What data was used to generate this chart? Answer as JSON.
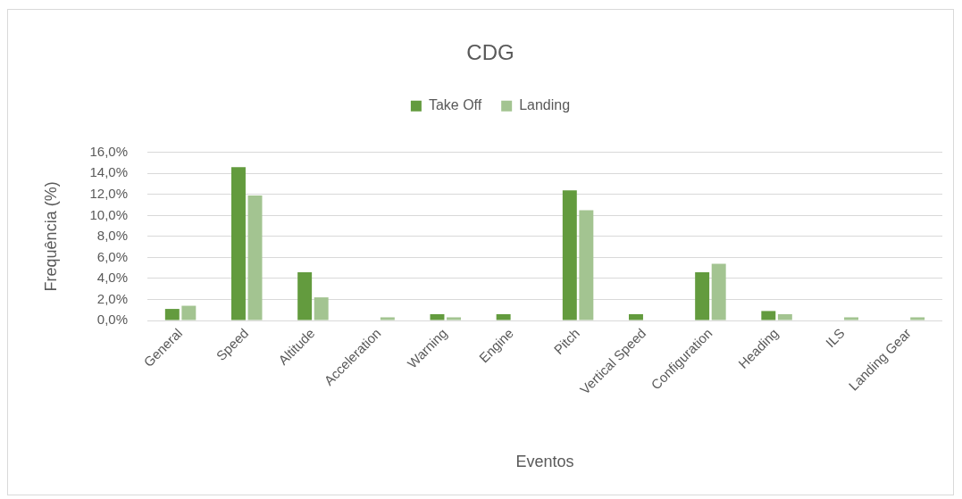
{
  "chart_data": {
    "type": "bar",
    "title": "CDG",
    "xlabel": "Eventos",
    "ylabel": "Frequência (%)",
    "categories": [
      "General",
      "Speed",
      "Altitude",
      "Acceleration",
      "Warning",
      "Engine",
      "Pitch",
      "Vertical Speed",
      "Configuration",
      "Heading",
      "ILS",
      "Landing Gear"
    ],
    "series": [
      {
        "name": "Take Off",
        "color": "#639b3e",
        "values": [
          1.1,
          14.6,
          4.6,
          0,
          0.6,
          0.6,
          12.4,
          0.6,
          4.6,
          0.9,
          0,
          0
        ]
      },
      {
        "name": "Landing",
        "color": "#a3c491",
        "values": [
          1.4,
          11.9,
          2.2,
          0.3,
          0.3,
          0,
          10.5,
          0,
          5.4,
          0.6,
          0.3,
          0.3
        ]
      }
    ],
    "ylim": [
      0,
      16
    ],
    "yticks": [
      {
        "value": 0,
        "label": "0,0%"
      },
      {
        "value": 2,
        "label": "2,0%"
      },
      {
        "value": 4,
        "label": "4,0%"
      },
      {
        "value": 6,
        "label": "6,0%"
      },
      {
        "value": 8,
        "label": "8,0%"
      },
      {
        "value": 10,
        "label": "10,0%"
      },
      {
        "value": 12,
        "label": "12,0%"
      },
      {
        "value": 14,
        "label": "14,0%"
      },
      {
        "value": 16,
        "label": "16,0%"
      }
    ],
    "grid": "y",
    "legend": "top"
  }
}
